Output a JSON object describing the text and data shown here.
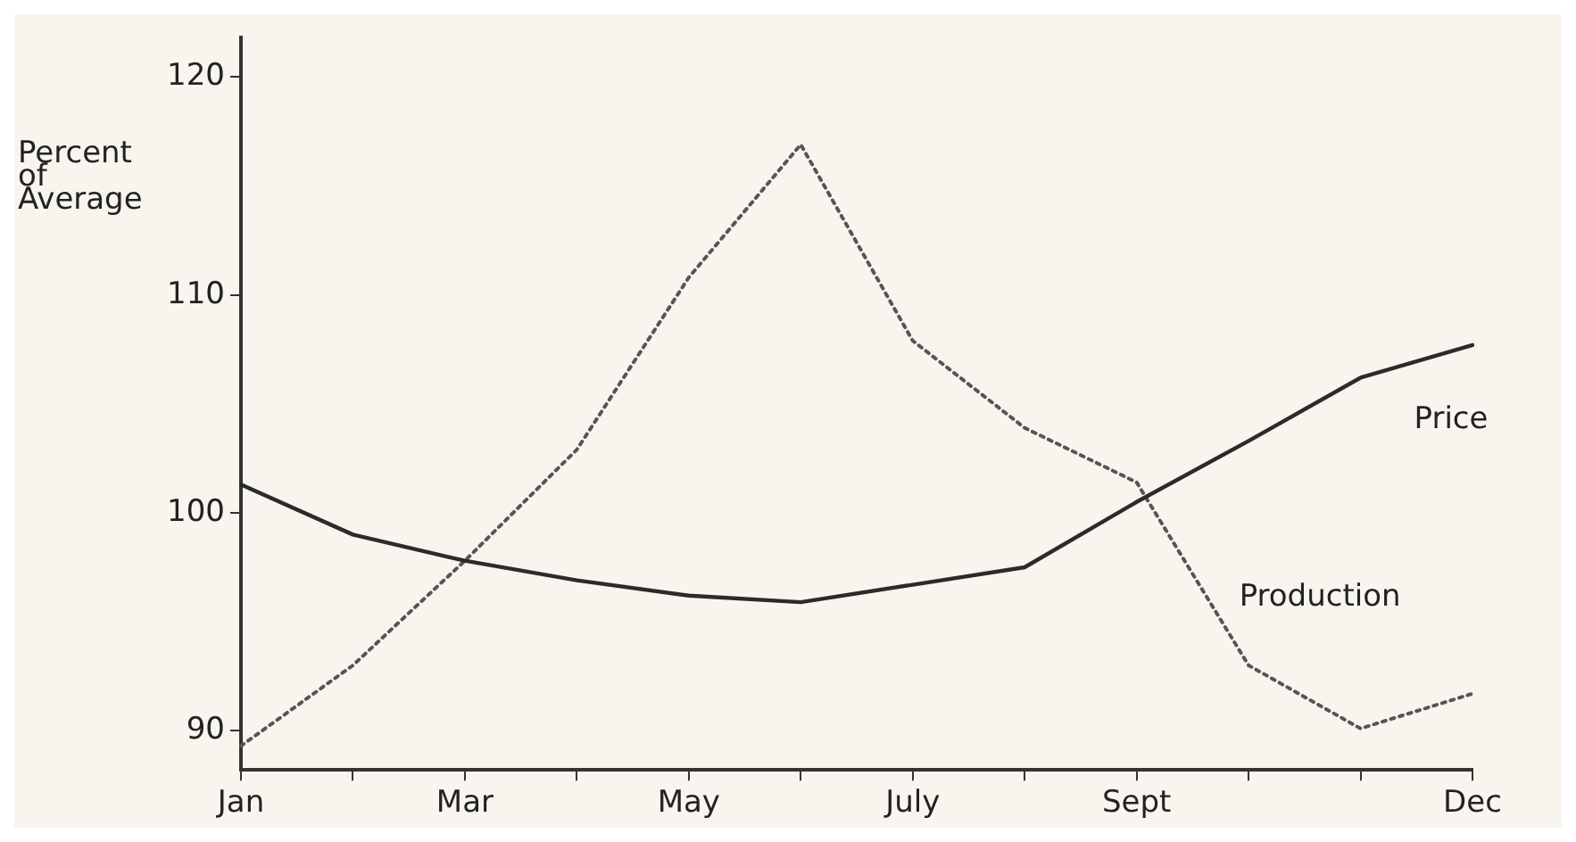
{
  "chart_data": {
    "type": "line",
    "ylabel": "Percent\nof\nAverage",
    "categories": [
      "Jan",
      null,
      "Mar",
      null,
      "May",
      null,
      "July",
      null,
      "Sept",
      null,
      null,
      "Dec"
    ],
    "series": [
      {
        "name": "Price",
        "color": "#2b2b2b",
        "line_style": "solid",
        "values": [
          101.3,
          99.0,
          97.8,
          96.9,
          96.2,
          95.9,
          96.7,
          97.5,
          100.5,
          103.3,
          106.2,
          107.7
        ]
      },
      {
        "name": "Production",
        "color": "#555555",
        "line_style": "dotted",
        "values": [
          89.3,
          93.0,
          97.8,
          102.9,
          110.8,
          116.9,
          107.9,
          103.9,
          101.4,
          93.0,
          90.1,
          91.7
        ]
      }
    ],
    "ylim": [
      88.2,
      121.8
    ],
    "yticks": [
      90,
      100,
      110,
      120
    ],
    "grid": false,
    "legend": false,
    "marker": "none"
  }
}
